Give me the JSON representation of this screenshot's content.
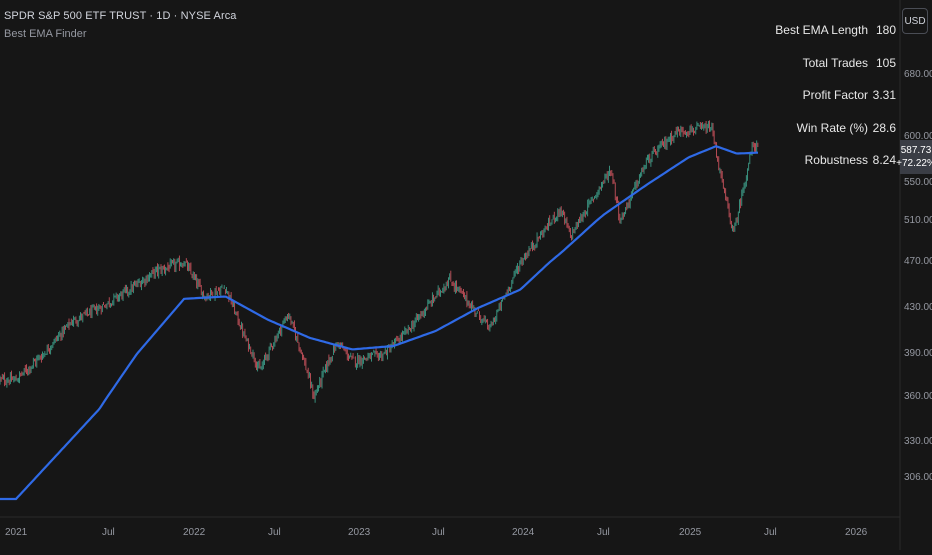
{
  "header": {
    "symbol_title": "SPDR S&P 500 ETF TRUST · 1D · NYSE Arca",
    "indicator_name": "Best EMA Finder"
  },
  "currency_button": "USD",
  "stats": [
    {
      "label": "Best EMA Length",
      "value": "180"
    },
    {
      "label": "Total Trades",
      "value": "105"
    },
    {
      "label": "Profit Factor",
      "value": "3.31"
    },
    {
      "label": "Win Rate (%)",
      "value": "28.6"
    },
    {
      "label": "Robustness",
      "value": "8.24"
    }
  ],
  "last_price": {
    "price": "587.73",
    "change": "+72.22%"
  },
  "colors": {
    "background": "#161616",
    "ema_line": "#2f6ae6",
    "candle_up": "#3c9a86",
    "candle_down": "#c4505a",
    "axis_text": "#9598a1"
  },
  "chart_data": {
    "type": "candlestick",
    "y_axis_ticks": [
      "680.00",
      "600.00",
      "550.00",
      "510.00",
      "470.00",
      "430.00",
      "390.00",
      "360.00",
      "330.00",
      "306.00"
    ],
    "x_axis_ticks": [
      "2021",
      "Jul",
      "2022",
      "Jul",
      "2023",
      "Jul",
      "2024",
      "Jul",
      "2025",
      "Jul",
      "2026"
    ],
    "price_series": [
      {
        "date": "2021-01-01",
        "value": 372
      },
      {
        "date": "2021-03-01",
        "value": 390
      },
      {
        "date": "2021-05-01",
        "value": 418
      },
      {
        "date": "2021-07-01",
        "value": 430
      },
      {
        "date": "2021-09-01",
        "value": 445
      },
      {
        "date": "2021-11-01",
        "value": 462
      },
      {
        "date": "2022-01-01",
        "value": 470
      },
      {
        "date": "2022-02-15",
        "value": 440
      },
      {
        "date": "2022-04-01",
        "value": 448
      },
      {
        "date": "2022-05-15",
        "value": 402
      },
      {
        "date": "2022-06-15",
        "value": 378
      },
      {
        "date": "2022-08-15",
        "value": 425
      },
      {
        "date": "2022-10-10",
        "value": 360
      },
      {
        "date": "2022-11-30",
        "value": 400
      },
      {
        "date": "2023-01-01",
        "value": 385
      },
      {
        "date": "2023-03-10",
        "value": 390
      },
      {
        "date": "2023-05-01",
        "value": 410
      },
      {
        "date": "2023-07-31",
        "value": 455
      },
      {
        "date": "2023-10-27",
        "value": 412
      },
      {
        "date": "2024-01-01",
        "value": 470
      },
      {
        "date": "2024-03-28",
        "value": 522
      },
      {
        "date": "2024-04-19",
        "value": 495
      },
      {
        "date": "2024-07-16",
        "value": 565
      },
      {
        "date": "2024-08-05",
        "value": 510
      },
      {
        "date": "2024-10-01",
        "value": 573
      },
      {
        "date": "2024-12-06",
        "value": 607
      },
      {
        "date": "2025-02-19",
        "value": 612
      },
      {
        "date": "2025-03-13",
        "value": 552
      },
      {
        "date": "2025-04-08",
        "value": 497
      },
      {
        "date": "2025-05-20",
        "value": 592
      },
      {
        "date": "2025-06-01",
        "value": 588
      }
    ],
    "ema_series": [
      {
        "date": "2021-01-01",
        "value": 292
      },
      {
        "date": "2021-07-01",
        "value": 352
      },
      {
        "date": "2022-01-01",
        "value": 438
      },
      {
        "date": "2022-04-01",
        "value": 440
      },
      {
        "date": "2022-07-01",
        "value": 420
      },
      {
        "date": "2022-10-01",
        "value": 404
      },
      {
        "date": "2023-01-01",
        "value": 394
      },
      {
        "date": "2023-04-01",
        "value": 397
      },
      {
        "date": "2023-07-01",
        "value": 410
      },
      {
        "date": "2023-10-01",
        "value": 430
      },
      {
        "date": "2024-01-01",
        "value": 446
      },
      {
        "date": "2024-04-01",
        "value": 480
      },
      {
        "date": "2024-07-01",
        "value": 517
      },
      {
        "date": "2024-10-01",
        "value": 548
      },
      {
        "date": "2025-01-01",
        "value": 578
      },
      {
        "date": "2025-03-01",
        "value": 590
      },
      {
        "date": "2025-04-15",
        "value": 582
      },
      {
        "date": "2025-06-01",
        "value": 583
      }
    ]
  }
}
